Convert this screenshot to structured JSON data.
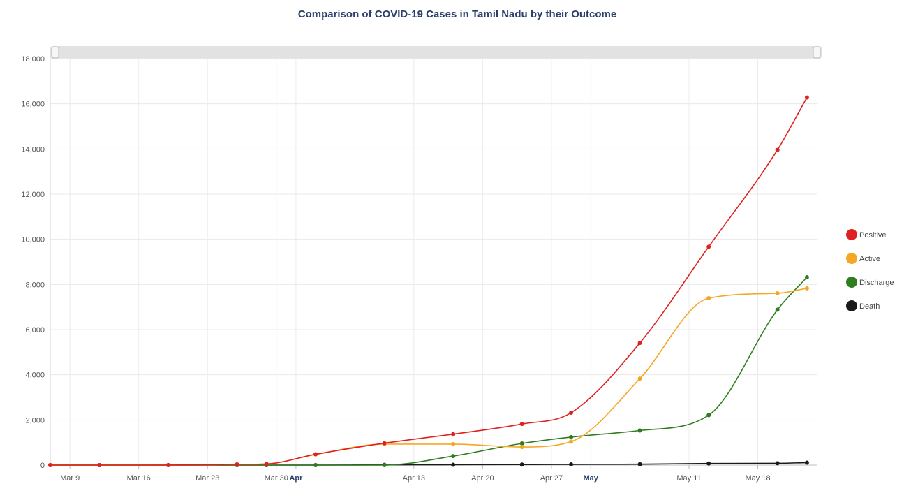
{
  "chart_data": {
    "type": "line",
    "title": "Comparison of COVID-19 Cases in Tamil Nadu by their Outcome",
    "xlabel": "",
    "ylabel": "",
    "ylim": [
      0,
      18000
    ],
    "y_ticks": [
      "0",
      "2,000",
      "4,000",
      "6,000",
      "8,000",
      "10,000",
      "12,000",
      "14,000",
      "16,000",
      "18,000"
    ],
    "x_range": [
      "2020-03-07",
      "2020-05-24"
    ],
    "x_ticks": [
      {
        "date": "2020-03-09",
        "label": "Mar 9",
        "bold": false
      },
      {
        "date": "2020-03-16",
        "label": "Mar 16",
        "bold": false
      },
      {
        "date": "2020-03-23",
        "label": "Mar 23",
        "bold": false
      },
      {
        "date": "2020-03-30",
        "label": "Mar 30",
        "bold": false
      },
      {
        "date": "2020-04-01",
        "label": "Apr",
        "bold": true
      },
      {
        "date": "2020-04-13",
        "label": "Apr 13",
        "bold": false
      },
      {
        "date": "2020-04-20",
        "label": "Apr 20",
        "bold": false
      },
      {
        "date": "2020-04-27",
        "label": "Apr 27",
        "bold": false
      },
      {
        "date": "2020-05-01",
        "label": "May",
        "bold": true
      },
      {
        "date": "2020-05-11",
        "label": "May 11",
        "bold": false
      },
      {
        "date": "2020-05-18",
        "label": "May 18",
        "bold": false
      }
    ],
    "x": [
      "2020-03-07",
      "2020-03-12",
      "2020-03-19",
      "2020-03-26",
      "2020-03-29",
      "2020-04-03",
      "2020-04-10",
      "2020-04-17",
      "2020-04-24",
      "2020-04-29",
      "2020-05-06",
      "2020-05-13",
      "2020-05-20",
      "2020-05-23"
    ],
    "series": [
      {
        "name": "Positive",
        "color": "#e02020",
        "values": [
          1,
          1,
          2,
          30,
          50,
          480,
          970,
          1370,
          1820,
          2320,
          5410,
          9670,
          13960,
          16280
        ]
      },
      {
        "name": "Active",
        "color": "#f5a623",
        "values": [
          1,
          1,
          2,
          30,
          50,
          470,
          930,
          930,
          800,
          1040,
          3830,
          7390,
          7610,
          7830
        ]
      },
      {
        "name": "Discharge",
        "color": "#2e7d1e",
        "values": [
          0,
          0,
          0,
          0,
          0,
          0,
          0,
          400,
          960,
          1240,
          1530,
          2210,
          6880,
          8320
        ]
      },
      {
        "name": "Death",
        "color": "#1a1a1a",
        "values": [
          0,
          0,
          0,
          0,
          0,
          0,
          10,
          15,
          25,
          30,
          40,
          70,
          80,
          110
        ]
      }
    ],
    "grid": true,
    "legend_position": "right"
  }
}
